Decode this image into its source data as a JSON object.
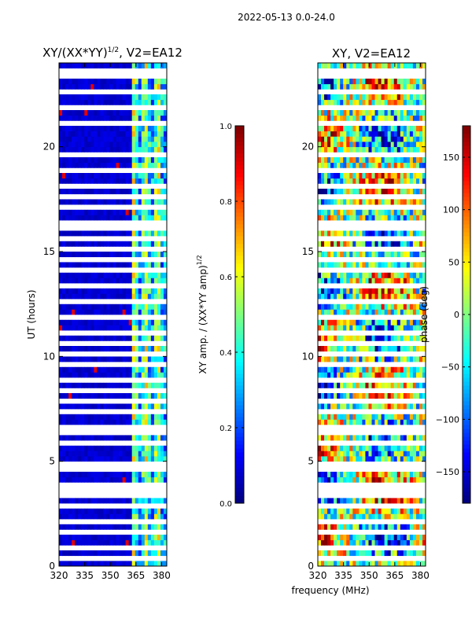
{
  "figure": {
    "suptitle": "2022-05-13 0.0-24.0",
    "shared_xlabel": "frequency (MHz)"
  },
  "chart_data": [
    {
      "type": "heatmap",
      "title": "XY/(XX*YY)^1/2, V2=EA12",
      "title_main": "XY/(XX*YY)",
      "title_exp": "1/2",
      "title_tail": ", V2=EA12",
      "xlabel": "frequency (MHz)",
      "ylabel": "UT (hours)",
      "xlim": [
        320,
        383
      ],
      "ylim": [
        0,
        24
      ],
      "xticks": [
        "320",
        "335",
        "350",
        "365",
        "380"
      ],
      "xtick_values": [
        320,
        335,
        350,
        365,
        380
      ],
      "yticks": [
        "0",
        "5",
        "10",
        "15",
        "20"
      ],
      "ytick_values": [
        0,
        5,
        10,
        15,
        20
      ],
      "colormap": "jet",
      "colorbar": {
        "label": "XY amp. / (XX*YY amp)^1/2",
        "label_main": "XY amp. / (XX*YY amp)",
        "label_exp": "1/2",
        "range": [
          0.0,
          1.0
        ],
        "ticks": [
          "0.0",
          "0.2",
          "0.4",
          "0.6",
          "0.8",
          "1.0"
        ],
        "tick_values": [
          0.0,
          0.2,
          0.4,
          0.6,
          0.8,
          1.0
        ]
      },
      "description_values": {
        "low_band_320_362": 0.05,
        "high_band_362_381": 0.4
      }
    },
    {
      "type": "heatmap",
      "title": "XY, V2=EA12",
      "xlabel": "frequency (MHz)",
      "ylabel": "",
      "xlim": [
        320,
        383
      ],
      "ylim": [
        0,
        24
      ],
      "xticks": [
        "320",
        "335",
        "350",
        "365",
        "380"
      ],
      "xtick_values": [
        320,
        335,
        350,
        365,
        380
      ],
      "yticks": [
        "0",
        "5",
        "10",
        "15",
        "20"
      ],
      "ytick_values": [
        0,
        5,
        10,
        15,
        20
      ],
      "colormap": "jet",
      "colorbar": {
        "label": "phase (deg)",
        "range": [
          -180,
          180
        ],
        "ticks": [
          "−150",
          "−100",
          "−50",
          "0",
          "50",
          "100",
          "150"
        ],
        "tick_values": [
          -150,
          -100,
          -50,
          0,
          50,
          100,
          150
        ]
      }
    }
  ],
  "flagged_hours": [
    0.4,
    0.9,
    1.5,
    2.2,
    2.9,
    3.3,
    3.6,
    3.9,
    4.7,
    4.85,
    5.9,
    6.35,
    6.7,
    7.4,
    7.9,
    8.4,
    8.9,
    9.6,
    10.2,
    10.6,
    11.2,
    11.9,
    12.5,
    13.3,
    14.0,
    14.6,
    15.2,
    15.7,
    16.0,
    16.3,
    17.2,
    17.7,
    18.2,
    18.8,
    19.6,
    21.0,
    21.9,
    22.5,
    23.3,
    23.6
  ]
}
